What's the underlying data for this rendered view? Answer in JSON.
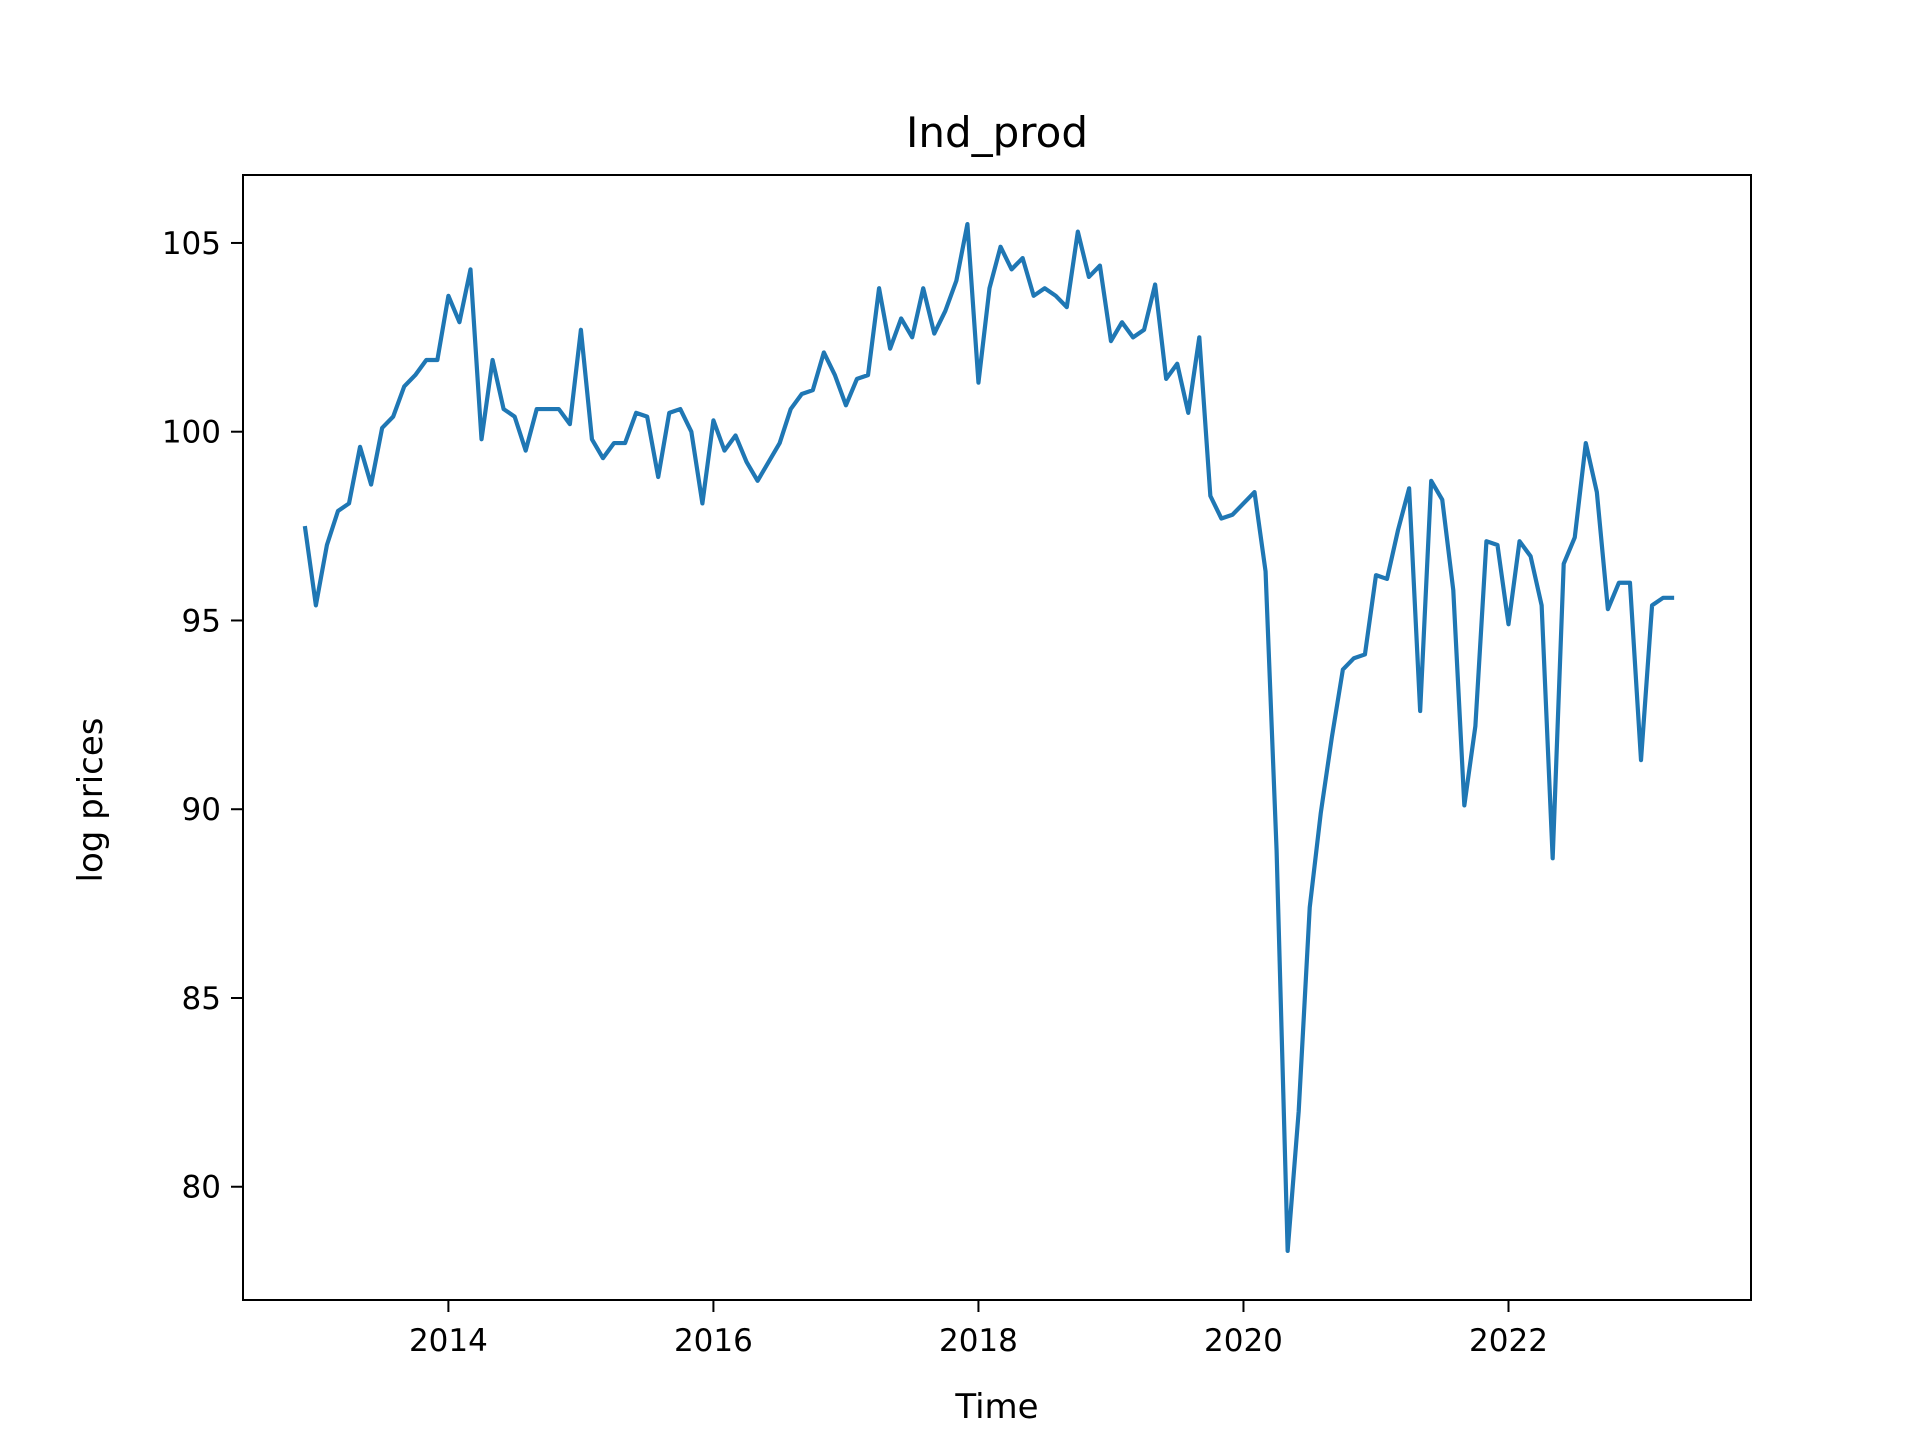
{
  "chart_data": {
    "type": "line",
    "title": "Ind_prod",
    "xlabel": "Time",
    "ylabel": "log prices",
    "xlim": [
      2012.45,
      2023.83
    ],
    "ylim": [
      77.0,
      106.8
    ],
    "x_ticks": [
      2014,
      2016,
      2018,
      2020,
      2022
    ],
    "y_ticks": [
      80,
      85,
      90,
      95,
      100,
      105
    ],
    "grid": false,
    "legend": "none",
    "colors": {
      "series": "#1f77b4"
    },
    "x_start": "2012-12",
    "frequency": "monthly",
    "series": [
      {
        "values": [
          97.5,
          95.4,
          97.0,
          97.9,
          98.1,
          99.6,
          98.6,
          100.1,
          100.4,
          101.2,
          101.5,
          101.9,
          101.9,
          103.6,
          102.9,
          104.3,
          99.8,
          101.9,
          100.6,
          100.4,
          99.5,
          100.6,
          100.6,
          100.6,
          100.2,
          102.7,
          99.8,
          99.3,
          99.7,
          99.7,
          100.5,
          100.4,
          98.8,
          100.5,
          100.6,
          100.0,
          98.1,
          100.3,
          99.5,
          99.9,
          99.2,
          98.7,
          99.2,
          99.7,
          100.6,
          101.0,
          101.1,
          102.1,
          101.5,
          100.7,
          101.4,
          101.5,
          103.8,
          102.2,
          103.0,
          102.5,
          103.8,
          102.6,
          103.2,
          104.0,
          105.5,
          101.3,
          103.8,
          104.9,
          104.3,
          104.6,
          103.6,
          103.8,
          103.6,
          103.3,
          105.3,
          104.1,
          104.4,
          102.4,
          102.9,
          102.5,
          102.7,
          103.9,
          101.4,
          101.8,
          100.5,
          102.5,
          98.3,
          97.7,
          97.8,
          98.1,
          98.4,
          96.3,
          88.9,
          78.3,
          82.0,
          87.4,
          89.9,
          91.9,
          93.7,
          94.0,
          94.1,
          96.2,
          96.1,
          97.4,
          98.5,
          92.6,
          98.7,
          98.2,
          95.8,
          90.1,
          92.2,
          97.1,
          97.0,
          94.9,
          97.1,
          96.7,
          95.4,
          88.7,
          96.5,
          97.2,
          99.7,
          98.4,
          95.3,
          96.0,
          96.0,
          91.3,
          95.4,
          95.6,
          95.6
        ]
      }
    ]
  }
}
